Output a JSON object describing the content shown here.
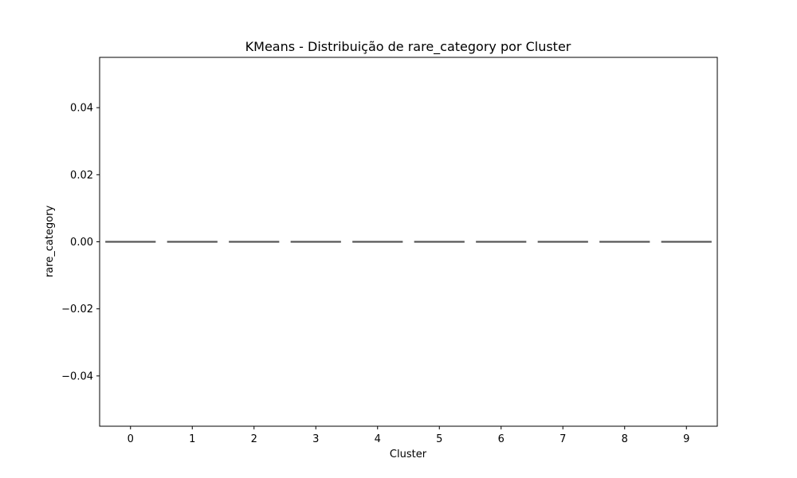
{
  "chart_data": {
    "type": "box",
    "title": "KMeans - Distribuição de rare_category por Cluster",
    "xlabel": "Cluster",
    "ylabel": "rare_category",
    "categories": [
      "0",
      "1",
      "2",
      "3",
      "4",
      "5",
      "6",
      "7",
      "8",
      "9"
    ],
    "yticks": [
      0.04,
      0.02,
      0.0,
      -0.02,
      -0.04
    ],
    "ytick_labels": [
      "0.04",
      "0.02",
      "0.00",
      "−0.02",
      "−0.04"
    ],
    "ylim": [
      -0.055,
      0.055
    ],
    "boxes": [
      {
        "category": "0",
        "min": 0,
        "q1": 0,
        "median": 0,
        "q3": 0,
        "max": 0
      },
      {
        "category": "1",
        "min": 0,
        "q1": 0,
        "median": 0,
        "q3": 0,
        "max": 0
      },
      {
        "category": "2",
        "min": 0,
        "q1": 0,
        "median": 0,
        "q3": 0,
        "max": 0
      },
      {
        "category": "3",
        "min": 0,
        "q1": 0,
        "median": 0,
        "q3": 0,
        "max": 0
      },
      {
        "category": "4",
        "min": 0,
        "q1": 0,
        "median": 0,
        "q3": 0,
        "max": 0
      },
      {
        "category": "5",
        "min": 0,
        "q1": 0,
        "median": 0,
        "q3": 0,
        "max": 0
      },
      {
        "category": "6",
        "min": 0,
        "q1": 0,
        "median": 0,
        "q3": 0,
        "max": 0
      },
      {
        "category": "7",
        "min": 0,
        "q1": 0,
        "median": 0,
        "q3": 0,
        "max": 0
      },
      {
        "category": "8",
        "min": 0,
        "q1": 0,
        "median": 0,
        "q3": 0,
        "max": 0
      },
      {
        "category": "9",
        "min": 0,
        "q1": 0,
        "median": 0,
        "q3": 0,
        "max": 0
      }
    ],
    "grid": false,
    "legend": "none",
    "box_color": "#555555"
  }
}
